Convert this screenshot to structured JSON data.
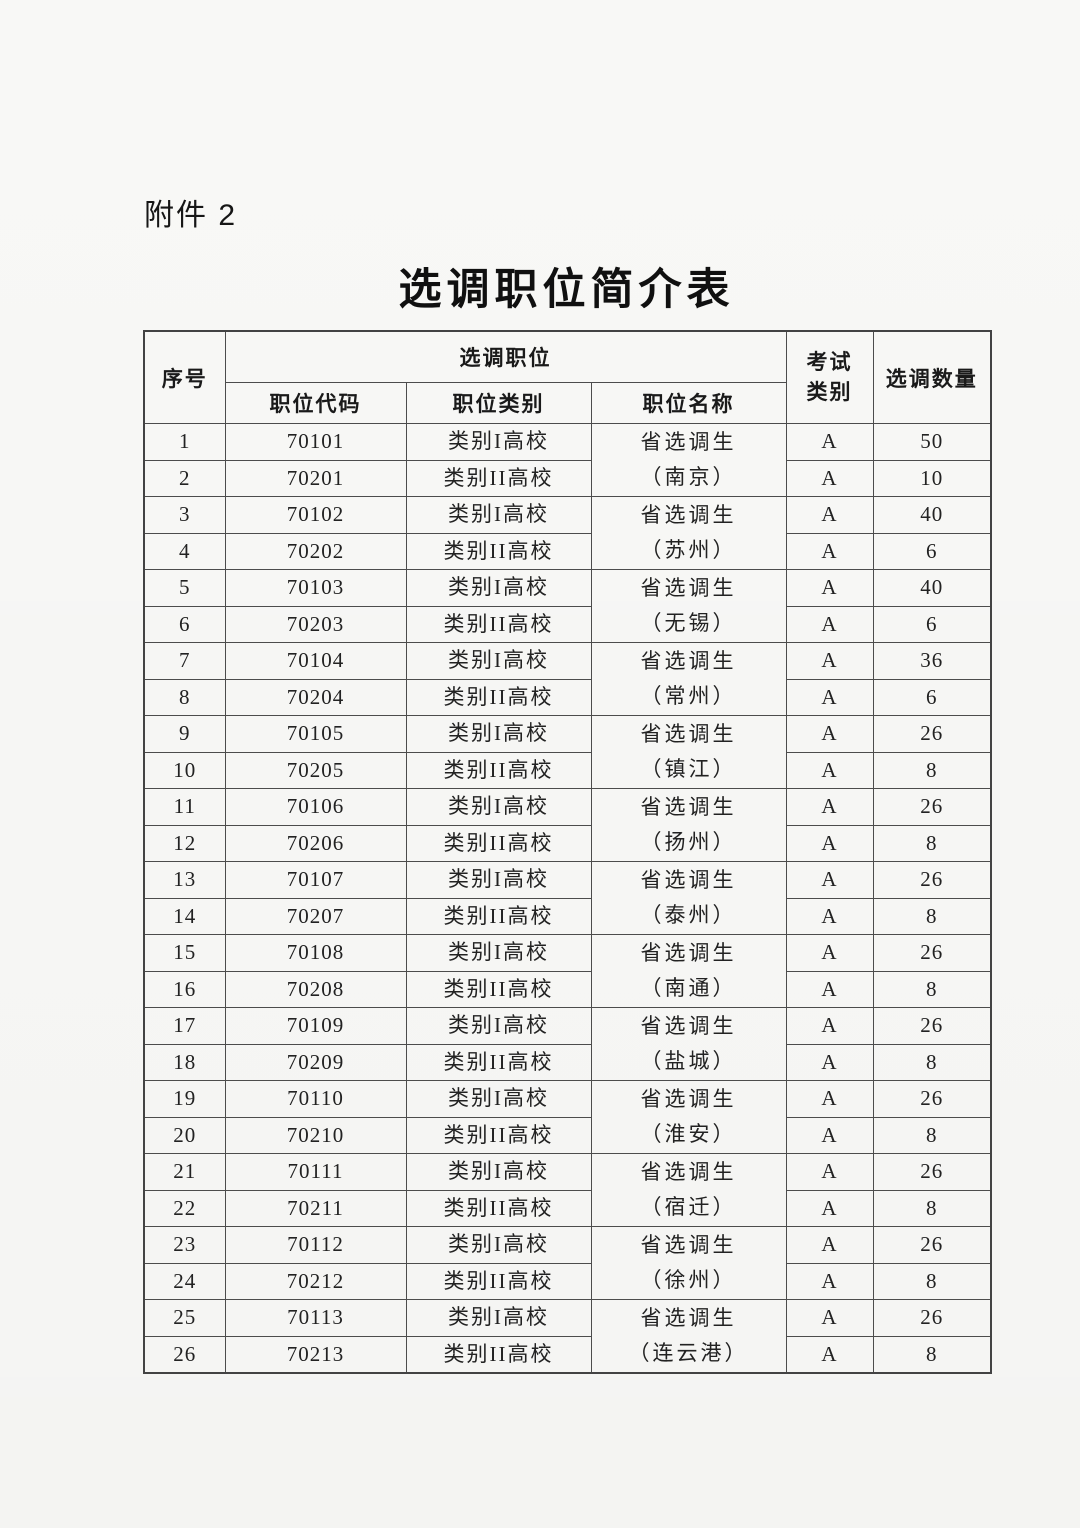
{
  "page": {
    "attachment_label": "附件 2",
    "title": "选调职位简介表",
    "colors": {
      "paper": "#fbfbf9",
      "ink": "#1f1f1f",
      "table_border": "#4c4c4c"
    }
  },
  "table": {
    "headers": {
      "serial": "序号",
      "position_group": "选调职位",
      "position_code": "职位代码",
      "position_category": "职位类别",
      "position_name": "职位名称",
      "exam_category_line1": "考试",
      "exam_category_line2": "类别",
      "quantity": "选调数量"
    },
    "pairs": [
      {
        "name": {
          "line1": "省选调生",
          "line2": "（南京）"
        },
        "a": {
          "no": "1",
          "code": "70101",
          "category": "类别I高校",
          "exam": "A",
          "qty": "50"
        },
        "b": {
          "no": "2",
          "code": "70201",
          "category": "类别II高校",
          "exam": "A",
          "qty": "10"
        }
      },
      {
        "name": {
          "line1": "省选调生",
          "line2": "（苏州）"
        },
        "a": {
          "no": "3",
          "code": "70102",
          "category": "类别I高校",
          "exam": "A",
          "qty": "40"
        },
        "b": {
          "no": "4",
          "code": "70202",
          "category": "类别II高校",
          "exam": "A",
          "qty": "6"
        }
      },
      {
        "name": {
          "line1": "省选调生",
          "line2": "（无锡）"
        },
        "a": {
          "no": "5",
          "code": "70103",
          "category": "类别I高校",
          "exam": "A",
          "qty": "40"
        },
        "b": {
          "no": "6",
          "code": "70203",
          "category": "类别II高校",
          "exam": "A",
          "qty": "6"
        }
      },
      {
        "name": {
          "line1": "省选调生",
          "line2": "（常州）"
        },
        "a": {
          "no": "7",
          "code": "70104",
          "category": "类别I高校",
          "exam": "A",
          "qty": "36"
        },
        "b": {
          "no": "8",
          "code": "70204",
          "category": "类别II高校",
          "exam": "A",
          "qty": "6"
        }
      },
      {
        "name": {
          "line1": "省选调生",
          "line2": "（镇江）"
        },
        "a": {
          "no": "9",
          "code": "70105",
          "category": "类别I高校",
          "exam": "A",
          "qty": "26"
        },
        "b": {
          "no": "10",
          "code": "70205",
          "category": "类别II高校",
          "exam": "A",
          "qty": "8"
        }
      },
      {
        "name": {
          "line1": "省选调生",
          "line2": "（扬州）"
        },
        "a": {
          "no": "11",
          "code": "70106",
          "category": "类别I高校",
          "exam": "A",
          "qty": "26"
        },
        "b": {
          "no": "12",
          "code": "70206",
          "category": "类别II高校",
          "exam": "A",
          "qty": "8"
        }
      },
      {
        "name": {
          "line1": "省选调生",
          "line2": "（泰州）"
        },
        "a": {
          "no": "13",
          "code": "70107",
          "category": "类别I高校",
          "exam": "A",
          "qty": "26"
        },
        "b": {
          "no": "14",
          "code": "70207",
          "category": "类别II高校",
          "exam": "A",
          "qty": "8"
        }
      },
      {
        "name": {
          "line1": "省选调生",
          "line2": "（南通）"
        },
        "a": {
          "no": "15",
          "code": "70108",
          "category": "类别I高校",
          "exam": "A",
          "qty": "26"
        },
        "b": {
          "no": "16",
          "code": "70208",
          "category": "类别II高校",
          "exam": "A",
          "qty": "8"
        }
      },
      {
        "name": {
          "line1": "省选调生",
          "line2": "（盐城）"
        },
        "a": {
          "no": "17",
          "code": "70109",
          "category": "类别I高校",
          "exam": "A",
          "qty": "26"
        },
        "b": {
          "no": "18",
          "code": "70209",
          "category": "类别II高校",
          "exam": "A",
          "qty": "8"
        }
      },
      {
        "name": {
          "line1": "省选调生",
          "line2": "（淮安）"
        },
        "a": {
          "no": "19",
          "code": "70110",
          "category": "类别I高校",
          "exam": "A",
          "qty": "26"
        },
        "b": {
          "no": "20",
          "code": "70210",
          "category": "类别II高校",
          "exam": "A",
          "qty": "8"
        }
      },
      {
        "name": {
          "line1": "省选调生",
          "line2": "（宿迁）"
        },
        "a": {
          "no": "21",
          "code": "70111",
          "category": "类别I高校",
          "exam": "A",
          "qty": "26"
        },
        "b": {
          "no": "22",
          "code": "70211",
          "category": "类别II高校",
          "exam": "A",
          "qty": "8"
        }
      },
      {
        "name": {
          "line1": "省选调生",
          "line2": "（徐州）"
        },
        "a": {
          "no": "23",
          "code": "70112",
          "category": "类别I高校",
          "exam": "A",
          "qty": "26"
        },
        "b": {
          "no": "24",
          "code": "70212",
          "category": "类别II高校",
          "exam": "A",
          "qty": "8"
        }
      },
      {
        "name": {
          "line1": "省选调生",
          "line2": "（连云港）"
        },
        "a": {
          "no": "25",
          "code": "70113",
          "category": "类别I高校",
          "exam": "A",
          "qty": "26"
        },
        "b": {
          "no": "26",
          "code": "70213",
          "category": "类别II高校",
          "exam": "A",
          "qty": "8"
        }
      }
    ]
  }
}
